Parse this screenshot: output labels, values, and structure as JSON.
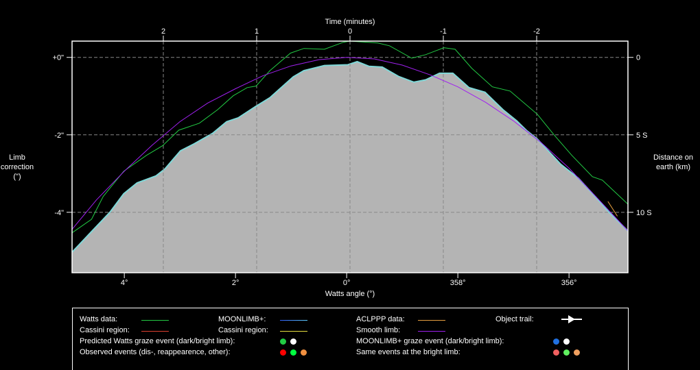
{
  "chart_data": {
    "type": "area",
    "title": "",
    "x_top_label": "Time (minutes)",
    "x_top_ticks": [
      "2",
      "1",
      "0",
      "-1",
      "-2"
    ],
    "x_top_values": [
      2,
      1,
      0,
      -1,
      -2
    ],
    "xlabel": "Watts angle (°)",
    "x_ticks": [
      "4°",
      "2°",
      "0°",
      "358°",
      "356°"
    ],
    "x_tick_values": [
      4,
      2,
      0,
      -2,
      -4
    ],
    "xlim": [
      4.94,
      -5.06
    ],
    "ylabel": "Limb correction (\")",
    "y_ticks": [
      "+0\"",
      "-2\"",
      "-4\""
    ],
    "y_tick_values": [
      0,
      -2,
      -4
    ],
    "ylim": [
      -5.56,
      0.42
    ],
    "y2label": "Distance on earth (km)",
    "y2_ticks": [
      "0",
      "5 S",
      "10 S"
    ],
    "grid": true,
    "series": [
      {
        "name": "MOONLIMB+ profile",
        "color": "#b4b4b4",
        "edge": "#7fd8d8",
        "x": [
          4.94,
          4.26,
          4.01,
          3.77,
          3.43,
          3.27,
          2.99,
          2.74,
          2.41,
          2.16,
          1.95,
          1.63,
          1.38,
          0.96,
          0.77,
          0.4,
          -0.02,
          -0.19,
          -0.4,
          -0.64,
          -0.93,
          -1.21,
          -1.42,
          -1.67,
          -1.91,
          -2.2,
          -2.49,
          -2.81,
          -3.06,
          -3.23,
          -3.43,
          -3.85,
          -4.17,
          -4.47,
          -4.72,
          -5.06
        ],
        "y": [
          -5.03,
          -4.0,
          -3.52,
          -3.24,
          -3.06,
          -2.88,
          -2.41,
          -2.23,
          -1.96,
          -1.66,
          -1.56,
          -1.26,
          -1.04,
          -0.5,
          -0.34,
          -0.21,
          -0.19,
          -0.11,
          -0.23,
          -0.25,
          -0.49,
          -0.64,
          -0.58,
          -0.41,
          -0.41,
          -0.78,
          -0.9,
          -1.35,
          -1.64,
          -1.88,
          -2.11,
          -2.76,
          -3.12,
          -3.59,
          -4.0,
          -4.48
        ]
      },
      {
        "name": "Watts data",
        "color": "#22cc44",
        "x": [
          4.94,
          4.59,
          4.38,
          4.01,
          3.6,
          3.31,
          3.02,
          2.65,
          2.32,
          2.04,
          1.79,
          1.63,
          1.38,
          1.01,
          0.77,
          0.4,
          0.06,
          -0.06,
          -0.56,
          -0.77,
          -1.17,
          -1.42,
          -1.75,
          -1.95,
          -2.25,
          -2.62,
          -2.94,
          -3.43,
          -3.73,
          -4.05,
          -4.42,
          -4.6,
          -5.06
        ],
        "y": [
          -4.53,
          -4.18,
          -3.59,
          -2.94,
          -2.53,
          -2.28,
          -1.88,
          -1.7,
          -1.35,
          -0.99,
          -0.78,
          -0.74,
          -0.34,
          0.11,
          0.23,
          0.21,
          0.39,
          0.42,
          0.37,
          0.3,
          -0.02,
          0.07,
          0.25,
          0.21,
          -0.28,
          -0.76,
          -0.87,
          -1.47,
          -2.0,
          -2.53,
          -3.08,
          -3.17,
          -3.79
        ]
      },
      {
        "name": "Smooth limb",
        "color": "#a020f0",
        "x": [
          4.94,
          4.5,
          4.0,
          3.5,
          3.0,
          2.5,
          2.0,
          1.5,
          1.0,
          0.5,
          0.0,
          -0.5,
          -1.0,
          -1.5,
          -2.0,
          -2.5,
          -3.0,
          -3.5,
          -4.0,
          -4.5,
          -5.06
        ],
        "y": [
          -4.44,
          -3.68,
          -2.94,
          -2.27,
          -1.66,
          -1.18,
          -0.81,
          -0.47,
          -0.22,
          -0.06,
          0,
          -0.04,
          -0.2,
          -0.45,
          -0.76,
          -1.16,
          -1.64,
          -2.2,
          -2.86,
          -3.62,
          -4.48
        ]
      },
      {
        "name": "ACLPPP data",
        "color": "#e8a040",
        "x": [
          -4.7,
          -4.87
        ],
        "y": [
          -3.72,
          -4.1
        ]
      }
    ]
  },
  "legend": {
    "watts": "Watts data:",
    "moonlimb": "MOONLIMB+:",
    "aclppp": "ACLPPP data:",
    "trail": "Object trail:",
    "cassini1": "Cassini region:",
    "cassini2": "Cassini region:",
    "smooth": "Smooth limb:",
    "pred_watts": "Predicted Watts graze event (dark/bright limb):",
    "moon_graze": "MOONLIMB+ graze event (dark/bright limb):",
    "observed": "Observed events (dis-, reappearence, other):",
    "same_bright": "Same events at the bright limb:"
  }
}
